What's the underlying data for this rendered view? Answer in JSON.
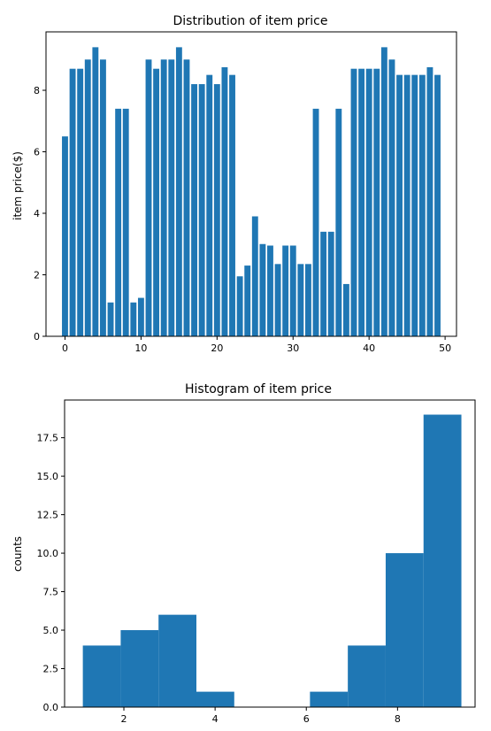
{
  "chart_data": [
    {
      "type": "bar",
      "title": "Distribution of item price",
      "xlabel": "",
      "ylabel": "item price($)",
      "xlim": [
        -2.5,
        51.5
      ],
      "ylim": [
        0,
        9.9
      ],
      "xticks": [
        0,
        10,
        20,
        30,
        40,
        50
      ],
      "yticks": [
        0,
        2,
        4,
        6,
        8
      ],
      "bar_color": "#1f77b4",
      "grid": false,
      "x": [
        0,
        1,
        2,
        3,
        4,
        5,
        6,
        7,
        8,
        9,
        10,
        11,
        12,
        13,
        14,
        15,
        16,
        17,
        18,
        19,
        20,
        21,
        22,
        23,
        24,
        25,
        26,
        27,
        28,
        29,
        30,
        31,
        32,
        33,
        34,
        35,
        36,
        37,
        38,
        39,
        40,
        41,
        42,
        43,
        44,
        45,
        46,
        47,
        48,
        49
      ],
      "values": [
        6.5,
        8.7,
        8.7,
        9.0,
        9.4,
        9.0,
        1.1,
        7.4,
        7.4,
        1.1,
        1.25,
        9.0,
        8.7,
        9.0,
        9.0,
        9.4,
        9.0,
        8.2,
        8.2,
        8.5,
        8.2,
        8.75,
        8.5,
        1.95,
        2.3,
        3.9,
        3.0,
        2.95,
        2.35,
        2.95,
        2.95,
        2.35,
        2.35,
        7.4,
        3.4,
        3.4,
        7.4,
        1.7,
        8.7,
        8.7,
        8.7,
        8.7,
        9.4,
        9.0,
        8.5,
        8.5,
        8.5,
        8.5,
        8.75,
        8.5
      ]
    },
    {
      "type": "histogram",
      "title": "Histogram of item price",
      "xlabel": "",
      "ylabel": "counts",
      "xlim": [
        0.7,
        9.7
      ],
      "ylim": [
        0,
        19.95
      ],
      "xticks": [
        2,
        4,
        6,
        8
      ],
      "yticks": [
        "0.0",
        "2.5",
        "5.0",
        "7.5",
        "10.0",
        "12.5",
        "15.0",
        "17.5"
      ],
      "bar_color": "#1f77b4",
      "grid": false,
      "bin_edges": [
        1.1,
        1.93,
        2.76,
        3.59,
        4.42,
        5.25,
        6.08,
        6.91,
        7.74,
        8.57,
        9.4
      ],
      "counts": [
        4,
        5,
        6,
        1,
        0,
        0,
        1,
        4,
        10,
        19
      ]
    }
  ]
}
